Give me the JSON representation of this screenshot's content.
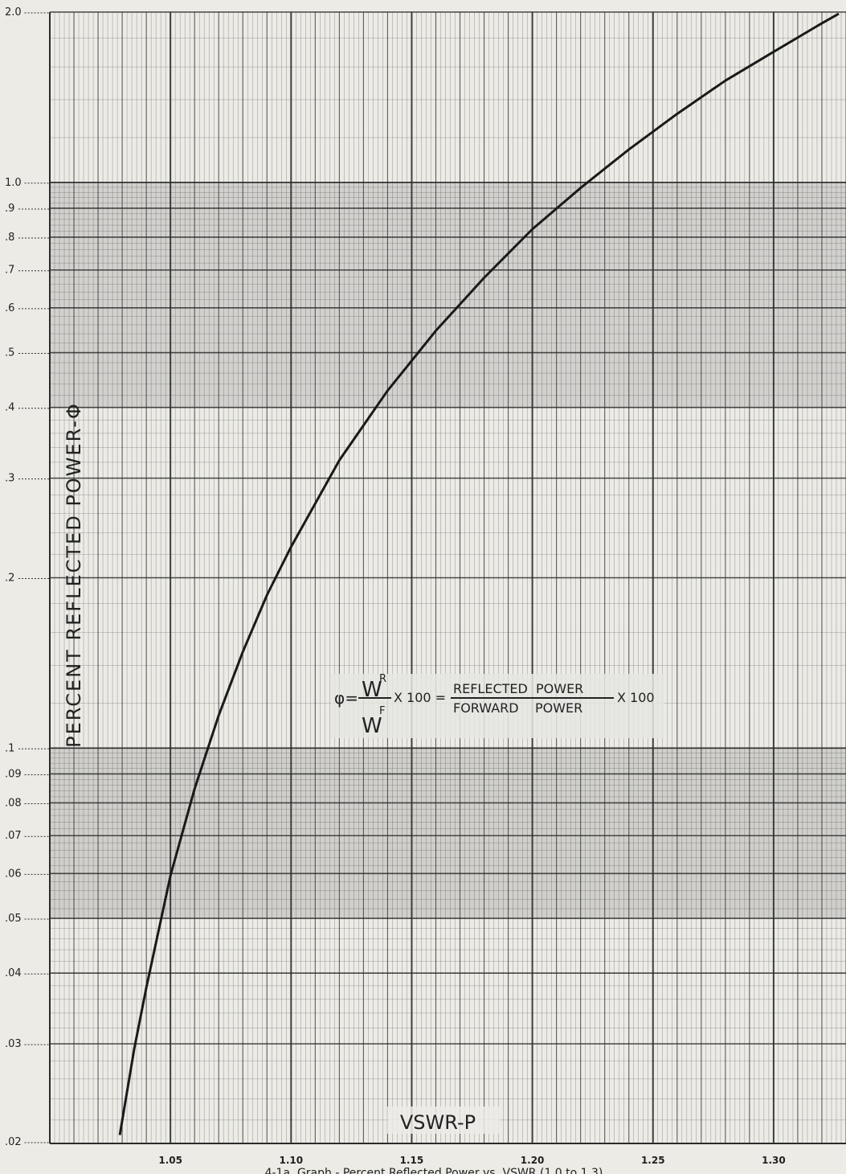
{
  "chart_data": {
    "type": "line",
    "title": "",
    "xlabel": "VSWR-P",
    "ylabel": "PERCENT REFLECTED POWER-Φ",
    "caption": "4-1a. Graph - Percent Reflected Power vs. VSWR (1.0 to 1.3)",
    "yscale": "log",
    "xlim": [
      1.0,
      1.33
    ],
    "ylim": [
      0.02,
      2.0
    ],
    "grid": true,
    "x_ticks": [
      "1.05",
      "1.10",
      "1.15",
      "1.20",
      "1.25",
      "1.30"
    ],
    "x_tick_values": [
      1.05,
      1.1,
      1.15,
      1.2,
      1.25,
      1.3
    ],
    "y_ticks": [
      "2.0",
      "1.0",
      ".9",
      ".8",
      ".7",
      ".6",
      ".5",
      ".4",
      ".3",
      ".2",
      ".1",
      ".09",
      ".08",
      ".07",
      ".06",
      ".05",
      ".04",
      ".03",
      ".02"
    ],
    "y_tick_values": [
      2.0,
      1.0,
      0.9,
      0.8,
      0.7,
      0.6,
      0.5,
      0.4,
      0.3,
      0.2,
      0.1,
      0.09,
      0.08,
      0.07,
      0.06,
      0.05,
      0.04,
      0.03,
      0.02
    ],
    "series": [
      {
        "x": [
          1.029,
          1.035,
          1.04,
          1.05,
          1.06,
          1.07,
          1.08,
          1.09,
          1.1,
          1.12,
          1.14,
          1.16,
          1.18,
          1.2,
          1.22,
          1.24,
          1.26,
          1.28,
          1.3,
          1.32,
          1.327
        ],
        "y": [
          0.0207,
          0.0294,
          0.0377,
          0.0595,
          0.0847,
          0.1142,
          0.1479,
          0.1864,
          0.2268,
          0.3226,
          0.4283,
          0.5466,
          0.6781,
          0.8264,
          0.9777,
          1.1433,
          1.3216,
          1.5129,
          1.7013,
          1.9112,
          1.9866
        ]
      }
    ],
    "annotation": {
      "lhs": "φ=",
      "num_sym": "W",
      "num_sup": "R",
      "den_sym": "W",
      "den_sup": "F",
      "mult1": "X 100 =",
      "num_text": "REFLECTED  POWER",
      "den_text": "FORWARD    POWER",
      "mult2": "X 100"
    }
  },
  "colors": {
    "paper": "#ecebe6",
    "grid": "#2b2b2b",
    "curve": "#1a1a1a",
    "shade": "#8f8f8f"
  }
}
